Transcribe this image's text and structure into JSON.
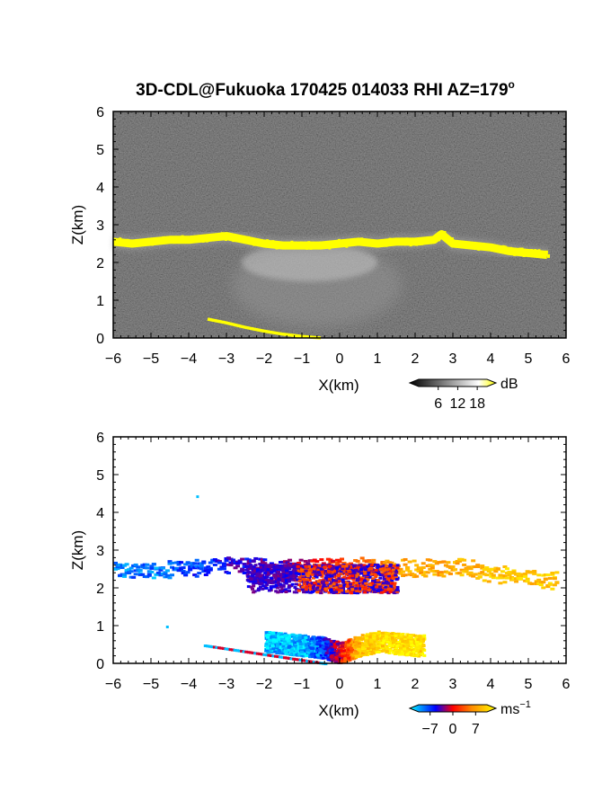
{
  "figure": {
    "title": "3D-CDL@Fukuoka 170425 014033 RHI AZ=179",
    "title_superscript": "o"
  },
  "chart_data": [
    {
      "type": "heatmap",
      "panel": "top",
      "quantity": "backscatter intensity",
      "title": "",
      "xlabel": "X(km)",
      "ylabel": "Z(km)",
      "xlim": [
        -6,
        6
      ],
      "ylim": [
        0,
        6
      ],
      "xticks": [
        -6,
        -5,
        -4,
        -3,
        -2,
        -1,
        0,
        1,
        2,
        3,
        4,
        5,
        6
      ],
      "yticks": [
        0,
        1,
        2,
        3,
        4,
        5,
        6
      ],
      "grid": false,
      "background_color": "#1c1c1c",
      "colorbar": {
        "unit": "dB",
        "ticks": [
          6,
          12,
          18
        ],
        "colors": [
          "#000000",
          "#ffffff",
          "#ffff00"
        ]
      },
      "features": [
        {
          "name": "cloud-base layer (yellow, high intensity)",
          "color": "#ffff00",
          "x": [
            -6.0,
            -5.5,
            -5.0,
            -4.5,
            -4.0,
            -3.5,
            -3.0,
            -2.5,
            -2.0,
            -1.5,
            -1.0,
            -0.5,
            0.0,
            0.5,
            1.0,
            1.5,
            2.0,
            2.5,
            2.7,
            3.0,
            3.5,
            4.0,
            4.5,
            5.0,
            5.5
          ],
          "z": [
            2.55,
            2.5,
            2.55,
            2.6,
            2.6,
            2.65,
            2.7,
            2.6,
            2.5,
            2.45,
            2.45,
            2.45,
            2.5,
            2.55,
            2.5,
            2.55,
            2.55,
            2.6,
            2.75,
            2.5,
            2.45,
            2.4,
            2.3,
            2.25,
            2.2
          ]
        },
        {
          "name": "near-surface layer (yellow)",
          "color": "#ffff00",
          "x": [
            -3.5,
            -3.0,
            -2.5,
            -2.0,
            -1.5,
            -1.0,
            -0.5
          ],
          "z": [
            0.5,
            0.4,
            0.28,
            0.18,
            0.1,
            0.04,
            0.0
          ]
        },
        {
          "name": "sub-cloud grey echo",
          "color": "#9a9a9a",
          "x_range": [
            -3.0,
            1.5
          ],
          "z_range": [
            0.0,
            2.4
          ]
        }
      ]
    },
    {
      "type": "heatmap",
      "panel": "bottom",
      "quantity": "Doppler radial velocity",
      "title": "",
      "xlabel": "X(km)",
      "ylabel": "Z(km)",
      "xlim": [
        -6,
        6
      ],
      "ylim": [
        0,
        6
      ],
      "xticks": [
        -6,
        -5,
        -4,
        -3,
        -2,
        -1,
        0,
        1,
        2,
        3,
        4,
        5,
        6
      ],
      "yticks": [
        0,
        1,
        2,
        3,
        4,
        5,
        6
      ],
      "grid": false,
      "background_color": "#ffffff",
      "colorbar": {
        "unit": "ms",
        "unit_superscript": "−1",
        "ticks": [
          -7,
          0,
          7
        ],
        "colors": [
          "#00ffff",
          "#0000ff",
          "#ff0000",
          "#ff8c00",
          "#ffff00"
        ]
      },
      "features": [
        {
          "name": "cloud-base layer velocity",
          "x": [
            -6.0,
            -5.0,
            -4.0,
            -3.0,
            -2.0,
            -1.0,
            0.0,
            1.0,
            2.0,
            3.0,
            4.0,
            5.0,
            5.7
          ],
          "z": [
            2.5,
            2.5,
            2.55,
            2.65,
            2.6,
            2.6,
            2.6,
            2.6,
            2.55,
            2.6,
            2.4,
            2.3,
            2.2
          ],
          "velocity_ms": [
            -5,
            -5,
            -4,
            -3,
            -2,
            -1,
            1,
            3,
            4,
            4,
            5,
            5,
            5
          ]
        },
        {
          "name": "near-surface outflow",
          "x": [
            -2.0,
            -1.0,
            -0.5,
            0.0,
            0.5,
            1.0,
            2.0
          ],
          "z": [
            0.6,
            0.5,
            0.45,
            0.3,
            0.5,
            0.6,
            0.5
          ],
          "velocity_ms": [
            -6,
            -6,
            -4,
            0,
            5,
            6,
            6
          ]
        },
        {
          "name": "isolated echoes",
          "x": [
            -3.8,
            -4.6
          ],
          "z": [
            4.45,
            1.0
          ],
          "velocity_ms": [
            -6,
            -6
          ]
        }
      ]
    }
  ]
}
